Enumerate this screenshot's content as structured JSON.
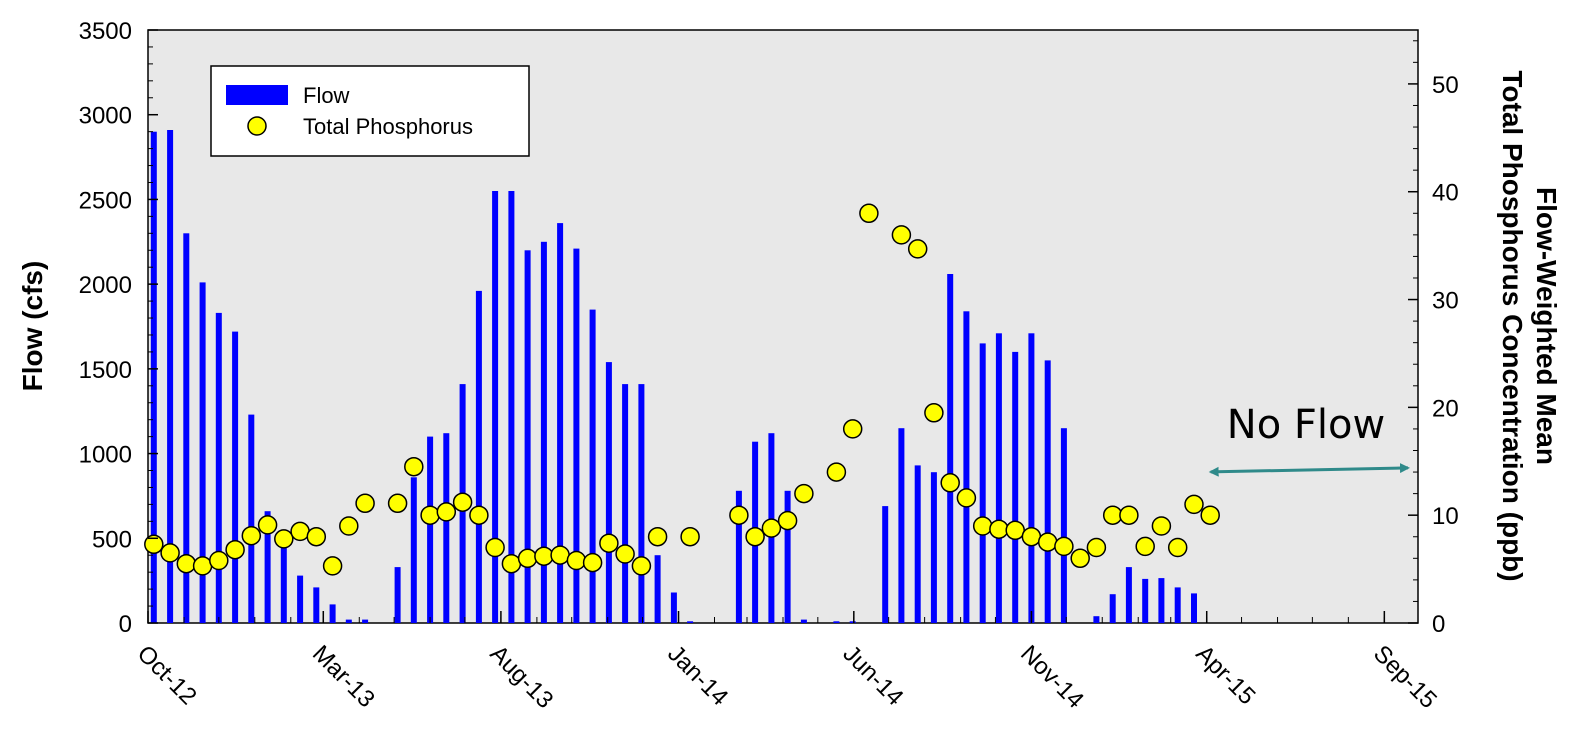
{
  "chart_data": {
    "type": "bar",
    "title": "",
    "xlabel": "",
    "ylabel": "Flow (cfs)",
    "y2label_line1": "Flow-Weighted Mean",
    "y2label_line2": "Total Phosphorus Concentration (ppb)",
    "ylim": [
      0,
      3500
    ],
    "y2lim": [
      0,
      55
    ],
    "yticks": [
      0,
      500,
      1000,
      1500,
      2000,
      2500,
      3000,
      3500
    ],
    "y2ticks": [
      0,
      10,
      20,
      30,
      40,
      50
    ],
    "xlim": [
      "2012-10-01",
      "2015-09-30"
    ],
    "xticks": [
      {
        "label": "Oct-12",
        "date": "2012-10-01"
      },
      {
        "label": "Mar-13",
        "date": "2013-03-01"
      },
      {
        "label": "Aug-13",
        "date": "2013-08-01"
      },
      {
        "label": "Jan-14",
        "date": "2014-01-01"
      },
      {
        "label": "Jun-14",
        "date": "2014-06-01"
      },
      {
        "label": "Nov-14",
        "date": "2014-11-01"
      },
      {
        "label": "Apr-15",
        "date": "2015-04-01"
      },
      {
        "label": "Sep-15",
        "date": "2015-09-01"
      }
    ],
    "grid": false,
    "legend_position": "top-left",
    "colors": {
      "flow": "#0000ff",
      "tp_fill": "#ffff00",
      "tp_edge": "#000000",
      "plot_bg": "#e8e8e8",
      "arrow": "#2f8a8a"
    },
    "series": [
      {
        "name": "Flow",
        "type": "bar",
        "axis": "left",
        "points": [
          [
            "2012-10-06",
            2900
          ],
          [
            "2012-10-20",
            2910
          ],
          [
            "2012-11-03",
            2300
          ],
          [
            "2012-11-17",
            2010
          ],
          [
            "2012-12-01",
            1830
          ],
          [
            "2012-12-15",
            1720
          ],
          [
            "2012-12-29",
            1230
          ],
          [
            "2013-01-12",
            660
          ],
          [
            "2013-01-26",
            480
          ],
          [
            "2013-02-09",
            280
          ],
          [
            "2013-02-23",
            210
          ],
          [
            "2013-03-09",
            110
          ],
          [
            "2013-03-23",
            20
          ],
          [
            "2013-04-06",
            20
          ],
          [
            "2013-05-04",
            330
          ],
          [
            "2013-05-18",
            860
          ],
          [
            "2013-06-01",
            1100
          ],
          [
            "2013-06-15",
            1120
          ],
          [
            "2013-06-29",
            1410
          ],
          [
            "2013-07-13",
            1960
          ],
          [
            "2013-07-27",
            2550
          ],
          [
            "2013-08-10",
            2550
          ],
          [
            "2013-08-24",
            2200
          ],
          [
            "2013-09-07",
            2250
          ],
          [
            "2013-09-21",
            2360
          ],
          [
            "2013-10-05",
            2210
          ],
          [
            "2013-10-19",
            1850
          ],
          [
            "2013-11-02",
            1540
          ],
          [
            "2013-11-16",
            1410
          ],
          [
            "2013-11-30",
            1410
          ],
          [
            "2013-12-14",
            400
          ],
          [
            "2013-12-28",
            180
          ],
          [
            "2014-01-11",
            10
          ],
          [
            "2014-02-22",
            780
          ],
          [
            "2014-03-08",
            1070
          ],
          [
            "2014-03-22",
            1120
          ],
          [
            "2014-04-05",
            780
          ],
          [
            "2014-04-19",
            20
          ],
          [
            "2014-05-17",
            10
          ],
          [
            "2014-05-31",
            10
          ],
          [
            "2014-06-28",
            690
          ],
          [
            "2014-07-12",
            1150
          ],
          [
            "2014-07-26",
            930
          ],
          [
            "2014-08-09",
            890
          ],
          [
            "2014-08-23",
            2060
          ],
          [
            "2014-09-06",
            1840
          ],
          [
            "2014-09-20",
            1650
          ],
          [
            "2014-10-04",
            1710
          ],
          [
            "2014-10-18",
            1600
          ],
          [
            "2014-11-01",
            1710
          ],
          [
            "2014-11-15",
            1550
          ],
          [
            "2014-11-29",
            1150
          ],
          [
            "2014-12-27",
            40
          ],
          [
            "2015-01-10",
            170
          ],
          [
            "2015-01-24",
            330
          ],
          [
            "2015-02-07",
            260
          ],
          [
            "2015-02-21",
            265
          ],
          [
            "2015-03-07",
            210
          ],
          [
            "2015-03-21",
            175
          ]
        ]
      },
      {
        "name": "Total Phosphorus",
        "type": "scatter",
        "axis": "right",
        "points": [
          [
            "2012-10-06",
            7.3
          ],
          [
            "2012-10-20",
            6.5
          ],
          [
            "2012-11-03",
            5.5
          ],
          [
            "2012-11-17",
            5.3
          ],
          [
            "2012-12-01",
            5.8
          ],
          [
            "2012-12-15",
            6.8
          ],
          [
            "2012-12-29",
            8.1
          ],
          [
            "2013-01-12",
            9.1
          ],
          [
            "2013-01-26",
            7.8
          ],
          [
            "2013-02-09",
            8.5
          ],
          [
            "2013-02-23",
            8.0
          ],
          [
            "2013-03-09",
            5.3
          ],
          [
            "2013-03-23",
            9.0
          ],
          [
            "2013-04-06",
            11.1
          ],
          [
            "2013-05-04",
            11.1
          ],
          [
            "2013-05-18",
            14.5
          ],
          [
            "2013-06-01",
            10.0
          ],
          [
            "2013-06-15",
            10.3
          ],
          [
            "2013-06-29",
            11.2
          ],
          [
            "2013-07-13",
            10.0
          ],
          [
            "2013-07-27",
            7.0
          ],
          [
            "2013-08-10",
            5.5
          ],
          [
            "2013-08-24",
            6.0
          ],
          [
            "2013-09-07",
            6.2
          ],
          [
            "2013-09-21",
            6.3
          ],
          [
            "2013-10-05",
            5.8
          ],
          [
            "2013-10-19",
            5.6
          ],
          [
            "2013-11-02",
            7.4
          ],
          [
            "2013-11-16",
            6.4
          ],
          [
            "2013-11-30",
            5.3
          ],
          [
            "2013-12-14",
            8.0
          ],
          [
            "2014-01-11",
            8.0
          ],
          [
            "2014-02-22",
            10.0
          ],
          [
            "2014-03-08",
            8.0
          ],
          [
            "2014-03-22",
            8.8
          ],
          [
            "2014-04-05",
            9.5
          ],
          [
            "2014-04-19",
            12.0
          ],
          [
            "2014-05-17",
            14.0
          ],
          [
            "2014-05-31",
            18.0
          ],
          [
            "2014-06-14",
            38.0
          ],
          [
            "2014-07-12",
            36.0
          ],
          [
            "2014-07-26",
            34.7
          ],
          [
            "2014-08-09",
            19.5
          ],
          [
            "2014-08-23",
            13.0
          ],
          [
            "2014-09-06",
            11.6
          ],
          [
            "2014-09-20",
            9.0
          ],
          [
            "2014-10-04",
            8.7
          ],
          [
            "2014-10-18",
            8.6
          ],
          [
            "2014-11-01",
            8.0
          ],
          [
            "2014-11-15",
            7.5
          ],
          [
            "2014-11-29",
            7.1
          ],
          [
            "2014-12-13",
            6.0
          ],
          [
            "2014-12-27",
            7.0
          ],
          [
            "2015-01-10",
            10.0
          ],
          [
            "2015-01-24",
            10.0
          ],
          [
            "2015-02-07",
            7.1
          ],
          [
            "2015-02-21",
            9.0
          ],
          [
            "2015-03-07",
            7.0
          ],
          [
            "2015-03-21",
            11.0
          ],
          [
            "2015-04-04",
            10.0
          ]
        ]
      }
    ],
    "annotations": [
      {
        "text": "No Flow",
        "arrow_from": "2015-04-01",
        "arrow_to": "2015-09-30",
        "arrow_level_right_axis": 14.2
      }
    ]
  },
  "legend": {
    "items": [
      {
        "label": "Flow",
        "symbol": "bar"
      },
      {
        "label": "Total Phosphorus",
        "symbol": "circle"
      }
    ]
  }
}
